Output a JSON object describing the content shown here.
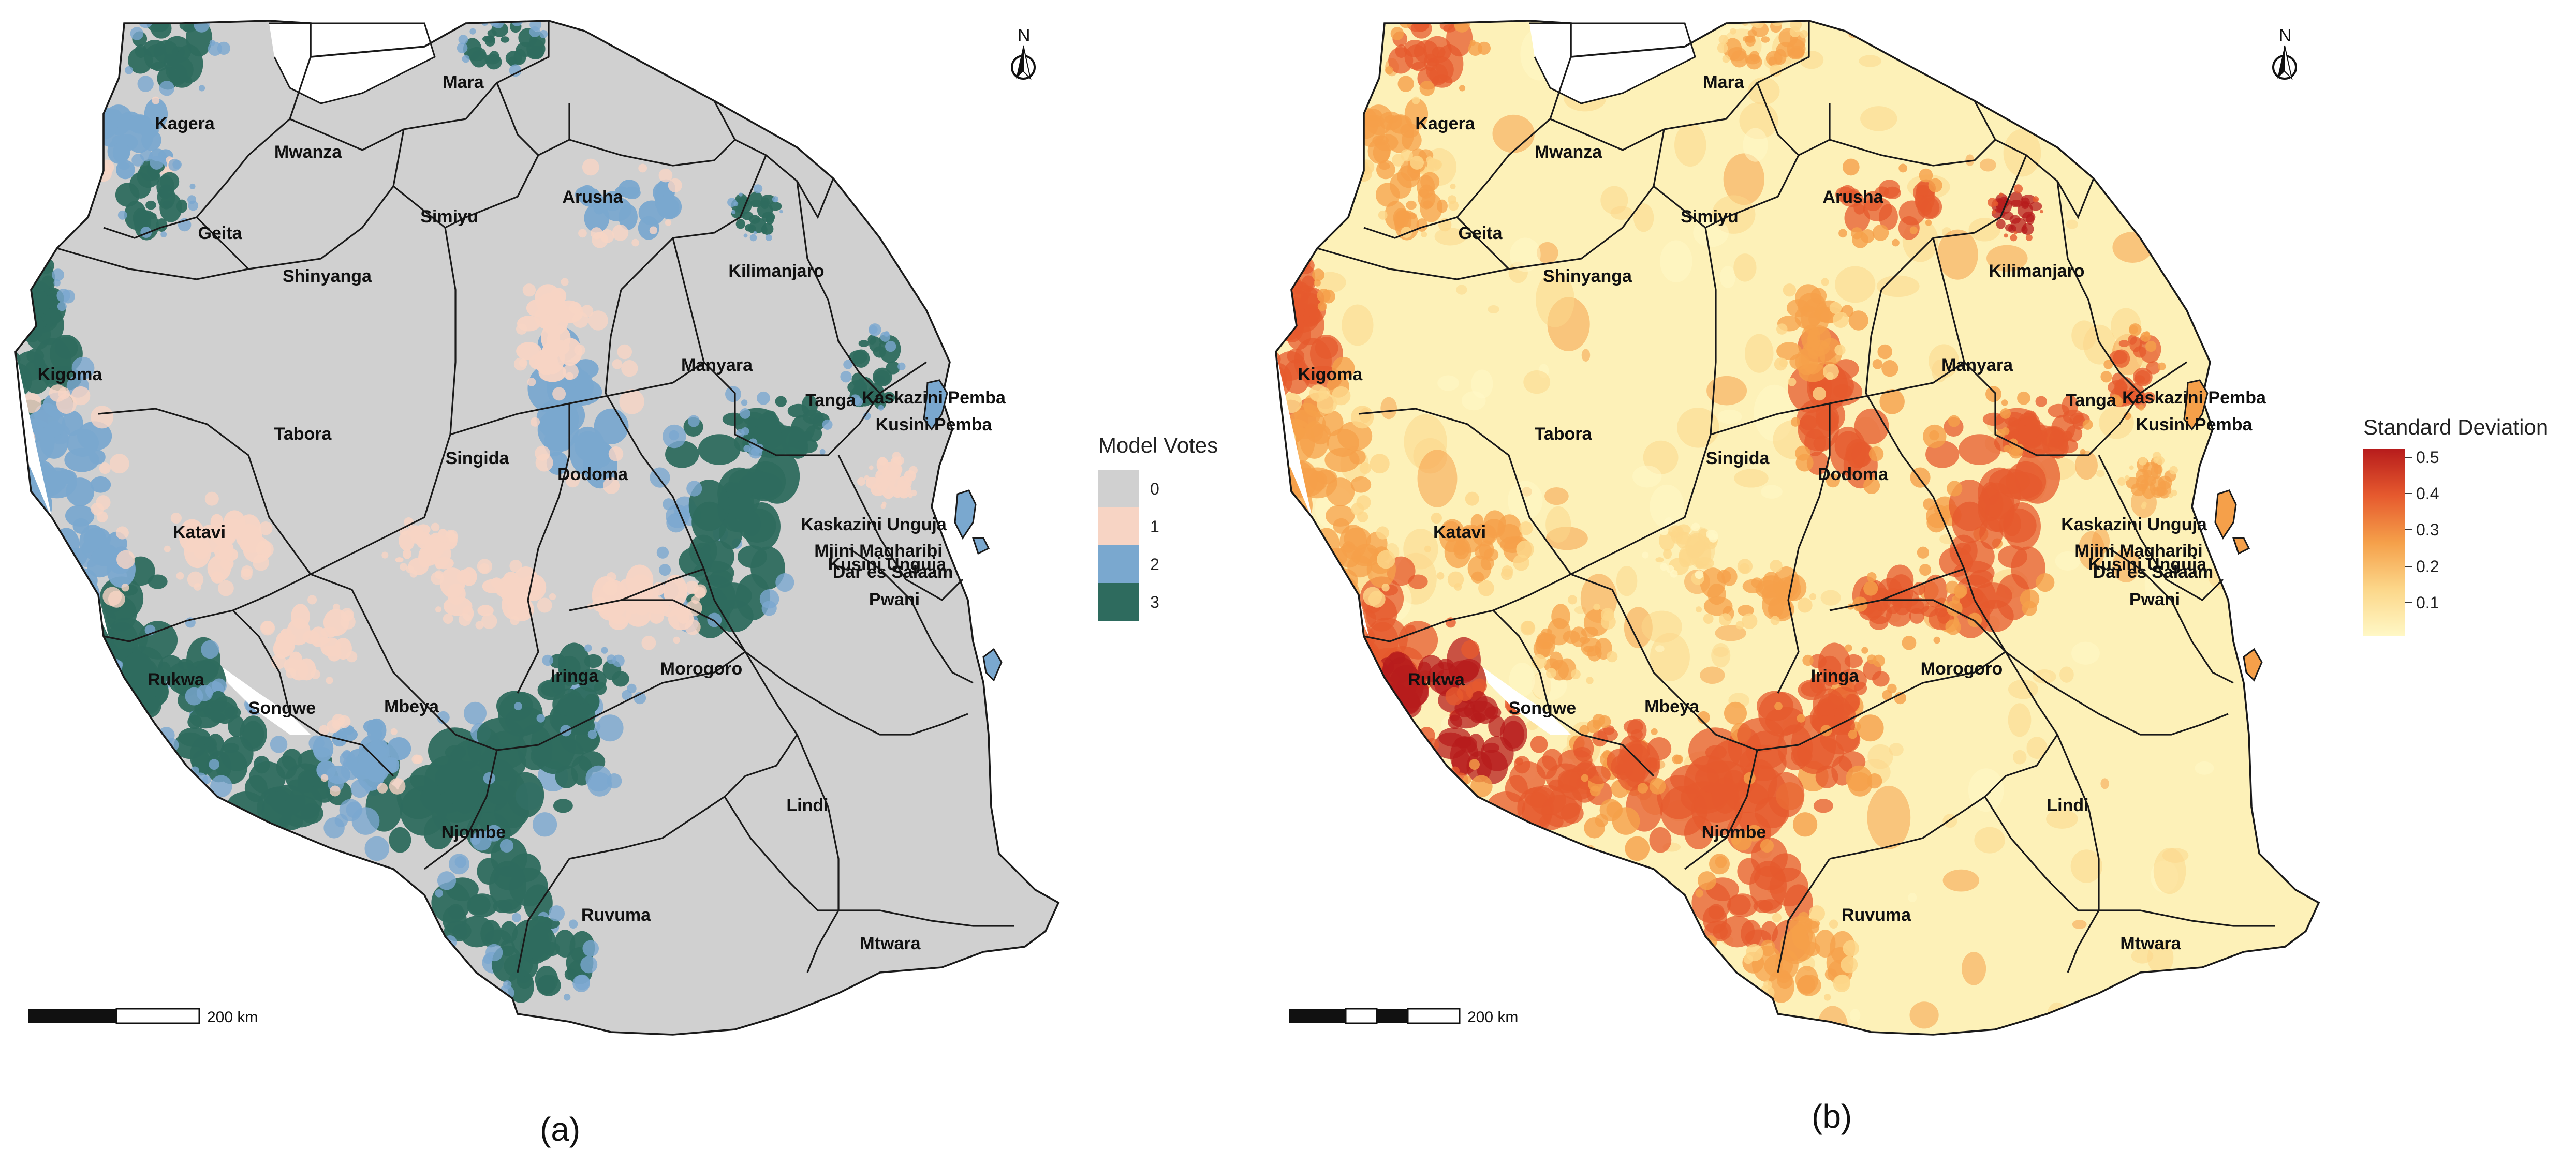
{
  "panels": [
    {
      "id": "a",
      "caption": "(a)",
      "legend": {
        "title": "Model Votes",
        "items": [
          {
            "label": "0",
            "color": "#d0d0d0"
          },
          {
            "label": "1",
            "color": "#f7d4c4"
          },
          {
            "label": "2",
            "color": "#7aa8cf"
          },
          {
            "label": "3",
            "color": "#2e6b5e"
          }
        ]
      },
      "scale_label": "200 km",
      "north_label": "N",
      "base_color": "#d0d0d0",
      "boundary_color": "#1a1a1a"
    },
    {
      "id": "b",
      "caption": "(b)",
      "legend": {
        "title": "Standard Deviation",
        "ticks": [
          "0.5",
          "0.4",
          "0.3",
          "0.2",
          "0.1"
        ],
        "gradient": [
          "#b71c1c",
          "#e65a2e",
          "#f5a04a",
          "#fcd78a",
          "#fff8c6"
        ]
      },
      "scale_label": "200 km",
      "north_label": "N",
      "base_color": "#fdf1b8",
      "boundary_color": "#1a1a1a"
    }
  ],
  "regions": [
    {
      "name": "Mara"
    },
    {
      "name": "Kagera"
    },
    {
      "name": "Mwanza"
    },
    {
      "name": "Simiyu"
    },
    {
      "name": "Arusha"
    },
    {
      "name": "Geita"
    },
    {
      "name": "Shinyanga"
    },
    {
      "name": "Kilimanjaro"
    },
    {
      "name": "Kigoma"
    },
    {
      "name": "Manyara"
    },
    {
      "name": "Tanga"
    },
    {
      "name": "Kaskazini Pemba"
    },
    {
      "name": "Kusini Pemba"
    },
    {
      "name": "Tabora"
    },
    {
      "name": "Singida"
    },
    {
      "name": "Dodoma"
    },
    {
      "name": "Kaskazini Unguja"
    },
    {
      "name": "Mjini Magharibi"
    },
    {
      "name": "Kusini Unguja"
    },
    {
      "name": "Katavi"
    },
    {
      "name": "Dar es Salaam"
    },
    {
      "name": "Pwani"
    },
    {
      "name": "Iringa"
    },
    {
      "name": "Morogoro"
    },
    {
      "name": "Rukwa"
    },
    {
      "name": "Songwe"
    },
    {
      "name": "Mbeya"
    },
    {
      "name": "Lindi"
    },
    {
      "name": "Njombe"
    },
    {
      "name": "Ruvuma"
    },
    {
      "name": "Mtwara"
    }
  ]
}
